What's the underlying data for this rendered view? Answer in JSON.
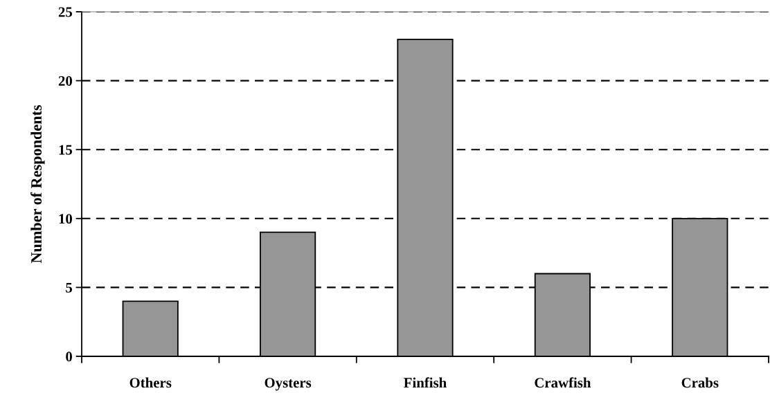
{
  "chart_data": {
    "type": "bar",
    "ylabel": "Number of Respondents",
    "categories": [
      "Others",
      "Oysters",
      "Finfish",
      "Crawfish",
      "Crabs"
    ],
    "values": [
      4,
      9,
      23,
      6,
      10
    ],
    "color": "#969696",
    "ylim": [
      0,
      25
    ],
    "yticks": [
      0,
      5,
      10,
      15,
      20,
      25
    ],
    "grid": "y",
    "line_style": "dashed"
  }
}
